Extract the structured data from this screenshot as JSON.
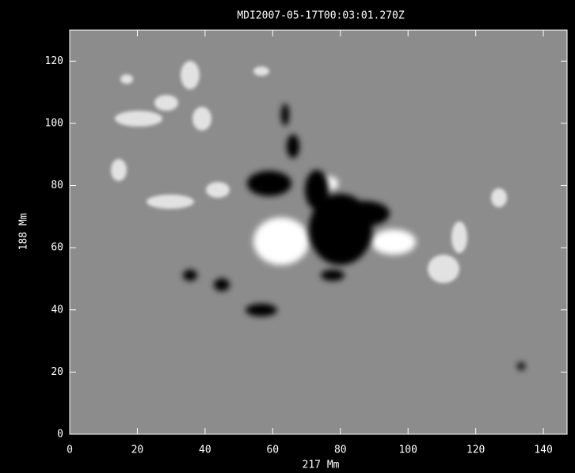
{
  "chart_data": {
    "type": "image",
    "title": "MDI2007-05-17T00:03:01.270Z",
    "x_label": "217 Mm",
    "y_label": "188 Mm",
    "xlim": [
      0,
      147
    ],
    "ylim": [
      0,
      130
    ],
    "xticks": [
      0,
      20,
      40,
      60,
      80,
      100,
      120,
      140
    ],
    "yticks": [
      0,
      20,
      40,
      60,
      80,
      100,
      120
    ],
    "background": "#8c8c8c"
  }
}
